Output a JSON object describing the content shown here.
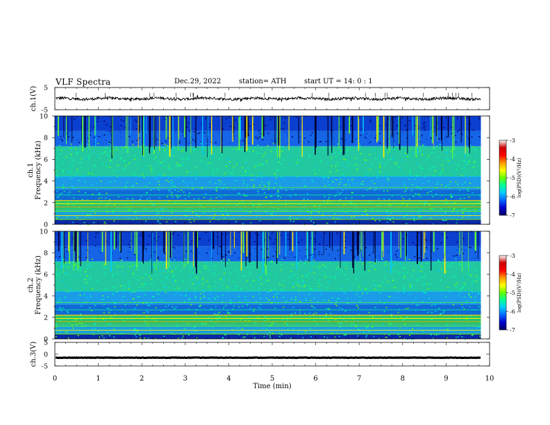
{
  "header": {
    "title": "VLF  Spectra",
    "date": "Dec.29, 2022",
    "station": "station= ATH",
    "start": "start  UT  =   14: 0   : 1"
  },
  "chart_data": [
    {
      "type": "line",
      "name": "ch1-waveform",
      "ylabel": "ch.1(V)",
      "ylim": [
        -5,
        5
      ],
      "yticks": [
        "5",
        "-5"
      ],
      "xlim": [
        0,
        10
      ],
      "trace": {
        "baseline": 0,
        "amplitude": 1.2,
        "x_end": 9.8
      },
      "color": "#000000"
    },
    {
      "type": "heatmap",
      "name": "ch1-spectrogram",
      "ylabel": "ch.1\nFrequency  (kHz)",
      "ylim": [
        0,
        10
      ],
      "yticks": [
        "0",
        "2",
        "4",
        "6",
        "8",
        "10"
      ],
      "xlim": [
        0,
        10
      ],
      "x_end": 9.8,
      "colorbar": {
        "label": "log(PSD)(V²/Hz)",
        "range": [
          -7,
          -3
        ],
        "ticks": [
          "-3",
          "-4",
          "-5",
          "-6",
          "-7"
        ],
        "colors": [
          "#000066",
          "#0000cc",
          "#0066ff",
          "#00ccff",
          "#00ff99",
          "#66ff00",
          "#ffff00",
          "#ff9900",
          "#ff0000",
          "#cc0000",
          "#ffffff"
        ]
      }
    },
    {
      "type": "heatmap",
      "name": "ch2-spectrogram",
      "ylabel": "ch.2\nFrequency  (kHz)",
      "ylim": [
        0,
        10
      ],
      "yticks": [
        "0",
        "2",
        "4",
        "6",
        "8",
        "10"
      ],
      "xlim": [
        0,
        10
      ],
      "x_end": 9.8,
      "colorbar": {
        "label": "log(PSD)(V²/Hz)",
        "range": [
          -7,
          -3
        ],
        "ticks": [
          "-3",
          "-4",
          "-5",
          "-6",
          "-7"
        ],
        "colors": [
          "#000066",
          "#0000cc",
          "#0066ff",
          "#00ccff",
          "#00ff99",
          "#66ff00",
          "#ffff00",
          "#ff9900",
          "#ff0000",
          "#cc0000",
          "#ffffff"
        ]
      }
    },
    {
      "type": "line",
      "name": "ch3-waveform",
      "ylabel": "ch.3(V)",
      "ylim": [
        -5,
        5
      ],
      "yticks": [
        "5",
        "0",
        "-5"
      ],
      "xlim": [
        0,
        10
      ],
      "xticks": [
        "0",
        "1",
        "2",
        "3",
        "4",
        "5",
        "6",
        "7",
        "8",
        "9",
        "10"
      ],
      "xlabel": "Time  (min)",
      "trace": {
        "baseline": -1.5,
        "amplitude": 0.2,
        "x_end": 9.8
      },
      "color": "#000000"
    }
  ]
}
